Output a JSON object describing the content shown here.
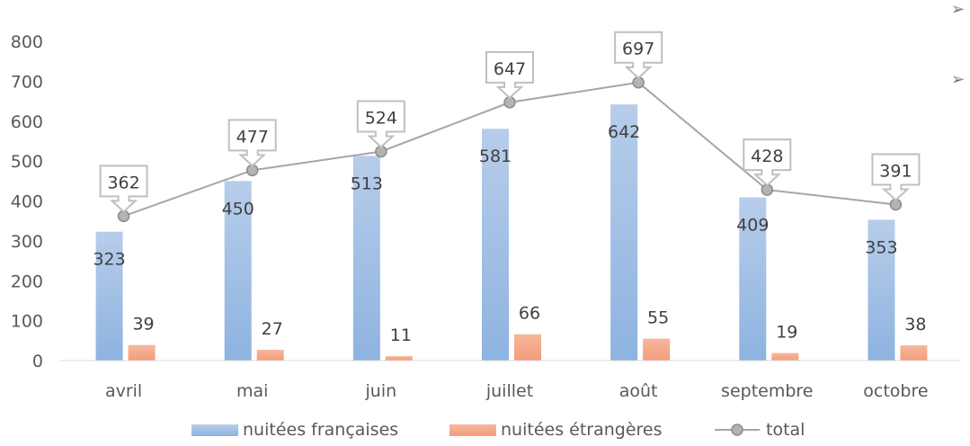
{
  "chart_data": {
    "type": "bar",
    "categories": [
      "avril",
      "mai",
      "juin",
      "juillet",
      "août",
      "septembre",
      "octobre"
    ],
    "series": [
      {
        "name": "nuitées françaises",
        "type": "bar",
        "color": "#9dbde4",
        "values": [
          323,
          450,
          513,
          581,
          642,
          409,
          353
        ]
      },
      {
        "name": "nuitées étrangères",
        "type": "bar",
        "color": "#f4a582",
        "values": [
          39,
          27,
          11,
          66,
          55,
          19,
          38
        ]
      },
      {
        "name": "total",
        "type": "line",
        "color": "#a6a6a6",
        "values": [
          362,
          477,
          524,
          647,
          697,
          428,
          391
        ]
      }
    ],
    "y_ticks": [
      "0",
      "100",
      "200",
      "300",
      "400",
      "500",
      "600",
      "700",
      "800"
    ],
    "ylim": [
      0,
      800
    ],
    "grid": false,
    "legend_position": "bottom"
  },
  "decor": {
    "arrow_icon": "➢"
  }
}
